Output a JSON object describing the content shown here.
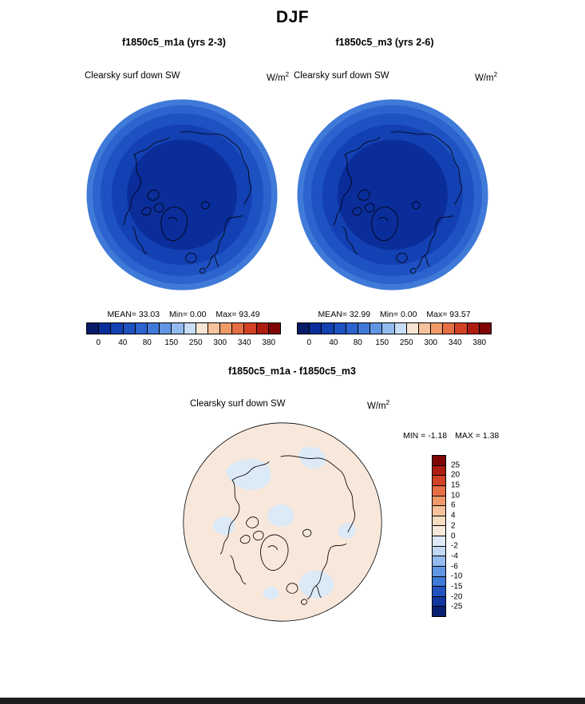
{
  "title": "DJF",
  "panels": [
    {
      "title": "f1850c5_m1a (yrs 2-3)",
      "variable": "Clearsky surf down SW",
      "units_base": "W/m",
      "units_exp": "2",
      "stats": {
        "mean_label": "MEAN=",
        "mean": "33.03",
        "min_label": "Min=",
        "min": "0.00",
        "max_label": "Max=",
        "max": "93.49"
      }
    },
    {
      "title": "f1850c5_m3 (yrs 2-6)",
      "variable": "Clearsky surf down SW",
      "units_base": "W/m",
      "units_exp": "2",
      "stats": {
        "mean_label": "MEAN=",
        "mean": "32.99",
        "min_label": "Min=",
        "min": "0.00",
        "max_label": "Max=",
        "max": "93.57"
      }
    }
  ],
  "diff": {
    "title": "f1850c5_m1a - f1850c5_m3",
    "variable": "Clearsky surf down SW",
    "units_base": "W/m",
    "units_exp": "2",
    "stats": {
      "min_label": "MIN =",
      "min": "-1.18",
      "max_label": "MAX =",
      "max": "1.38"
    }
  },
  "colorbars": {
    "sw": {
      "orientation": "h",
      "tick_first": 1,
      "tick_step": 2,
      "labels": [
        "0",
        "40",
        "80",
        "150",
        "250",
        "300",
        "340",
        "380"
      ],
      "colors": [
        "#061c66",
        "#0a2d9a",
        "#1340b2",
        "#1e51c2",
        "#2c63ce",
        "#3f7ad8",
        "#6196e2",
        "#93baee",
        "#c8def6",
        "#f7e6d5",
        "#f6c29b",
        "#f09a6a",
        "#e56e44",
        "#d24126",
        "#ad1c10",
        "#7e0606"
      ]
    },
    "diff": {
      "orientation": "v",
      "tick_first": 1,
      "tick_step": 1,
      "labels": [
        "25",
        "20",
        "15",
        "10",
        "6",
        "4",
        "2",
        "0",
        "-2",
        "-4",
        "-6",
        "-10",
        "-15",
        "-20",
        "-25"
      ],
      "colors": [
        "#7e0606",
        "#ad1c10",
        "#d24126",
        "#e56e44",
        "#f09a6a",
        "#f6c29b",
        "#f8dcc0",
        "#f8e8dc",
        "#dce9f6",
        "#c0d8f0",
        "#93baee",
        "#6196e2",
        "#3f7ad8",
        "#2353c0",
        "#12379e",
        "#071f70"
      ]
    }
  },
  "colors": {
    "sw_rings": [
      "#0a2d9a",
      "#1340b2",
      "#1e51c2",
      "#2c63ce",
      "#3f7ad8"
    ],
    "diff_positive": "#f8e8dc",
    "diff_negative": "#dce9f6",
    "coastline": "#000000",
    "footer_bar": "#1f1f1f"
  },
  "chart_data": [
    {
      "type": "heatmap",
      "map_projection": "north-polar-stereographic",
      "season": "DJF",
      "title": "f1850c5_m1a (yrs 2-3)",
      "variable": "Clearsky surf down SW",
      "units": "W/m2",
      "stats": {
        "mean": 33.03,
        "min": 0.0,
        "max": 93.49
      },
      "colorbar_tick_labels": [
        0,
        40,
        80,
        150,
        250,
        300,
        340,
        380
      ],
      "value_range_shown": [
        0,
        93.49
      ],
      "pattern": "Value 0 W/m2 (darkest blue) over a broad region centered on the North Pole, increasing in nearly zonal concentric bands of lighter blue toward the equatorward map edge (~93 W/m2); all values fall in the blue low end of the 0-380 color scale",
      "legend_position": "bottom",
      "grid": false
    },
    {
      "type": "heatmap",
      "map_projection": "north-polar-stereographic",
      "season": "DJF",
      "title": "f1850c5_m3 (yrs 2-6)",
      "variable": "Clearsky surf down SW",
      "units": "W/m2",
      "stats": {
        "mean": 32.99,
        "min": 0.0,
        "max": 93.57
      },
      "colorbar_tick_labels": [
        0,
        40,
        80,
        150,
        250,
        300,
        340,
        380
      ],
      "value_range_shown": [
        0,
        93.57
      ],
      "pattern": "Nearly identical to panel 1: zonally symmetric increase from 0 W/m2 at the pole to ~93 W/m2 at the map edge",
      "legend_position": "bottom",
      "grid": false
    },
    {
      "type": "heatmap",
      "map_projection": "north-polar-stereographic",
      "season": "DJF",
      "title": "f1850c5_m1a - f1850c5_m3",
      "variable": "Clearsky surf down SW",
      "units": "W/m2",
      "stats": {
        "min": -1.18,
        "max": 1.38
      },
      "colorbar_tick_labels": [
        25,
        20,
        15,
        10,
        6,
        4,
        2,
        0,
        -2,
        -4,
        -6,
        -10,
        -15,
        -20,
        -25
      ],
      "value_range_shown": [
        -1.18,
        1.38
      ],
      "pattern": "Difference map dominated by 0 to +2 W/m2 (pale orange) with scattered -2 to 0 W/m2 patches (pale blue)",
      "legend_position": "right",
      "grid": false
    }
  ]
}
